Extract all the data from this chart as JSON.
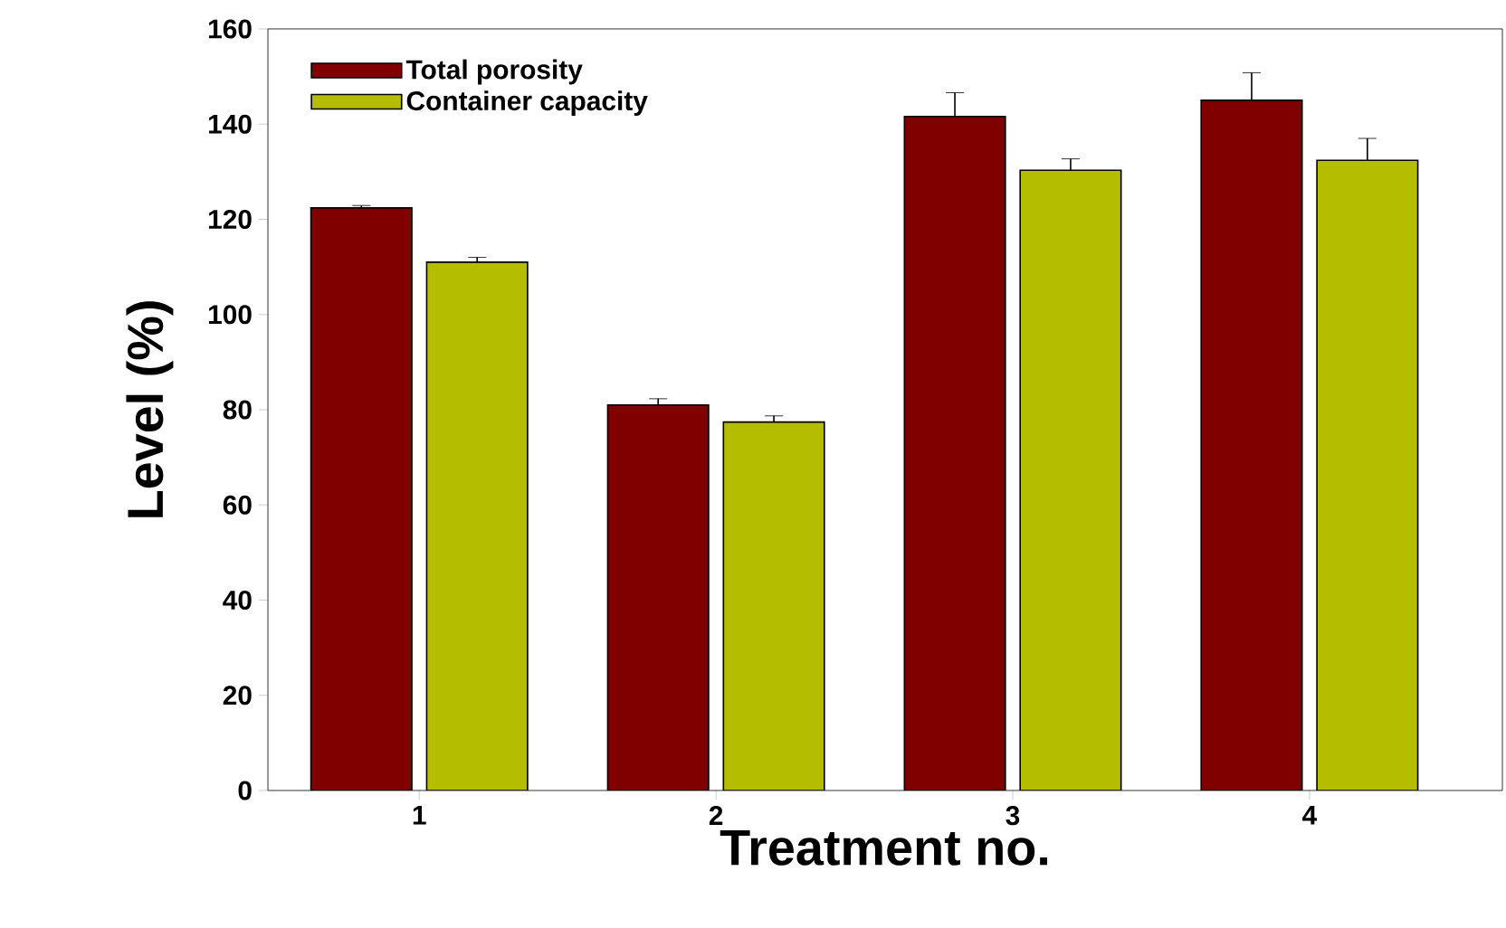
{
  "chart_data": {
    "type": "bar",
    "xlabel": "Treatment no.",
    "ylabel": "Level (%)",
    "categories": [
      "1",
      "2",
      "3",
      "4"
    ],
    "series": [
      {
        "name": "Total porosity",
        "color": "#800000",
        "values": [
          122.4,
          81.0,
          141.6,
          145.0
        ],
        "errors": [
          0.5,
          1.3,
          5.0,
          5.8
        ]
      },
      {
        "name": "Container capacity",
        "color": "#b5bd00",
        "values": [
          111.0,
          77.4,
          130.3,
          132.4
        ],
        "errors": [
          1.0,
          1.3,
          2.4,
          4.6
        ]
      }
    ],
    "ylim": [
      0,
      160
    ],
    "yticks": [
      0,
      20,
      40,
      60,
      80,
      100,
      120,
      140,
      160
    ],
    "legend": "top left",
    "grid": false
  }
}
